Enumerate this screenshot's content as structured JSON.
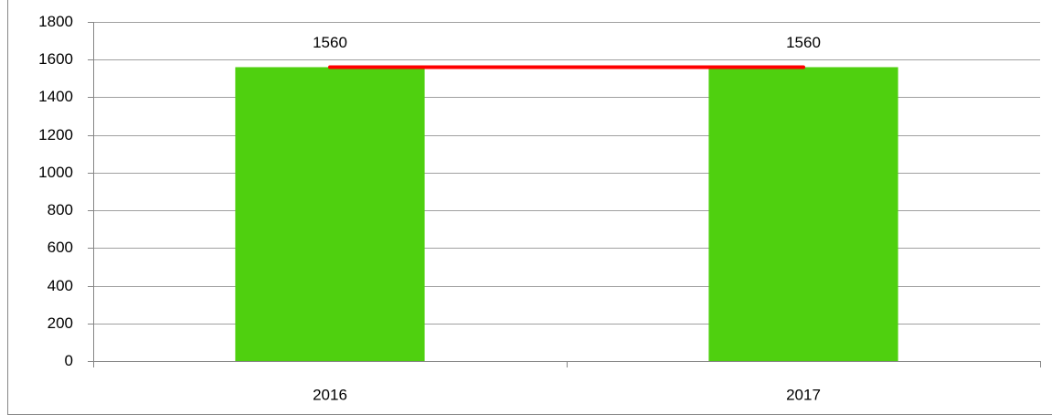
{
  "chart_data": {
    "type": "bar",
    "categories": [
      "2016",
      "2017"
    ],
    "values": [
      1560,
      1560
    ],
    "color": "#4fd00f",
    "overlay_line": {
      "values": [
        1560,
        1560
      ],
      "color": "#ff0000"
    },
    "ylim": [
      0,
      1800
    ],
    "yticks": [
      0,
      200,
      400,
      600,
      800,
      1000,
      1200,
      1400,
      1600,
      1800
    ],
    "grid": true
  }
}
